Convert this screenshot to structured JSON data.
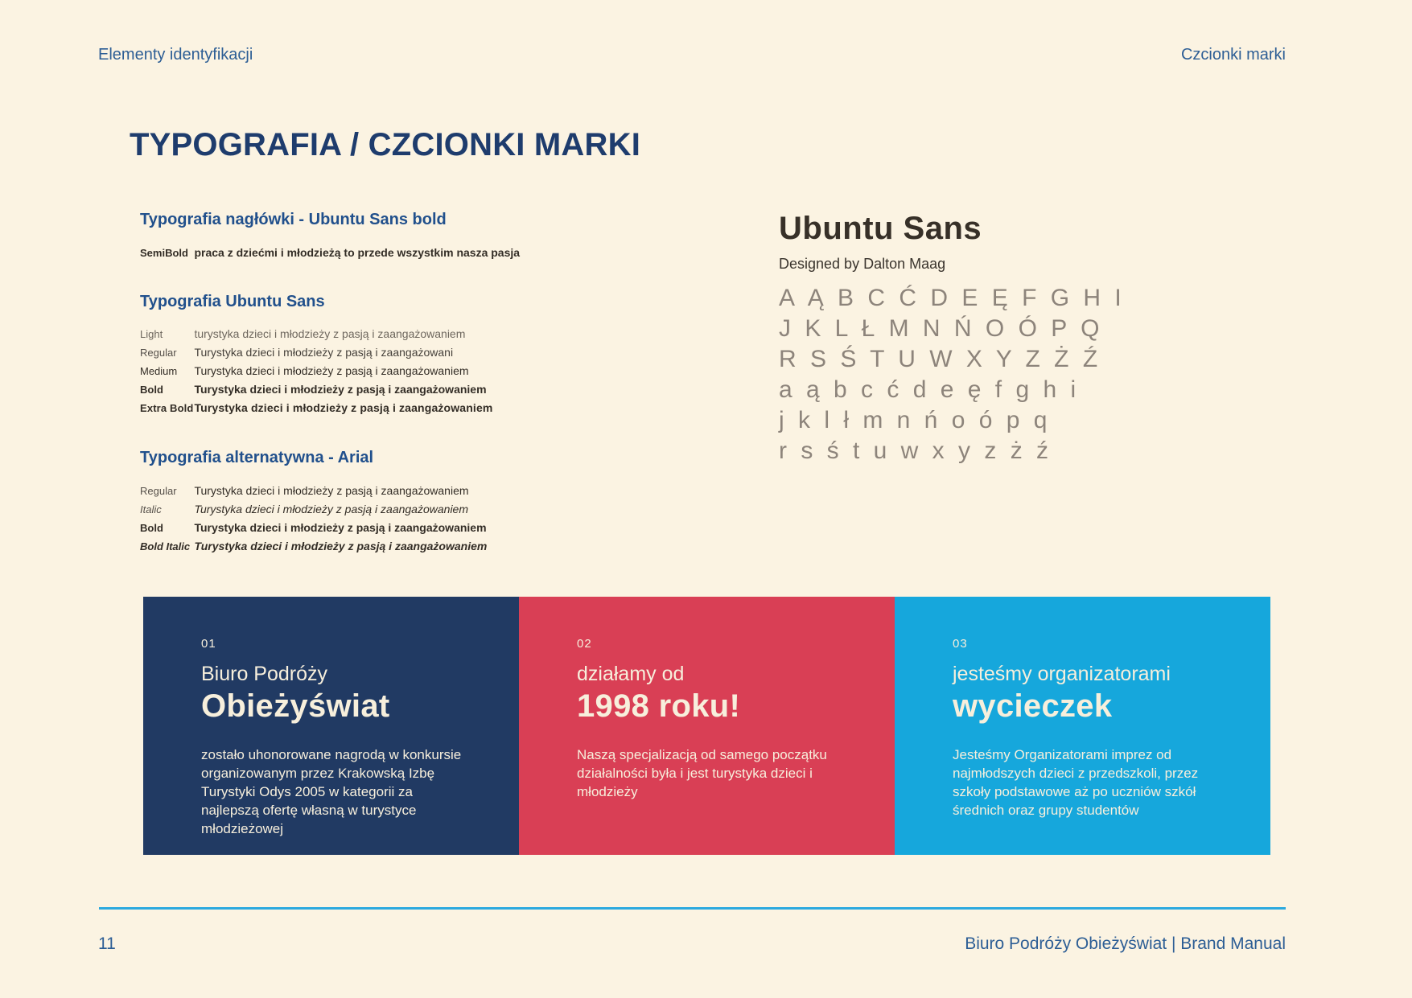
{
  "page": {
    "header_left": "Elementy identyfikacji",
    "header_right": "Czcionki marki",
    "title": "TYPOGRAFIA / CZCIONKI MARKI",
    "footer_page_number": "11",
    "footer_right": "Biuro Podróży Obieżyświat | Brand Manual"
  },
  "typography": {
    "heading_section": {
      "title": "Typografia nagłówki - Ubuntu Sans bold",
      "rows": [
        {
          "label": "SemiBold",
          "text": "praca z dziećmi i młodzieżą to przede wszystkim nasza pasja"
        }
      ]
    },
    "ubuntu_section": {
      "title": "Typografia Ubuntu Sans",
      "rows": [
        {
          "label": "Light",
          "text": "turystyka dzieci i młodzieży z pasją i zaangażowaniem"
        },
        {
          "label": "Regular",
          "text": "Turystyka dzieci i młodzieży z pasją i zaangażowani"
        },
        {
          "label": "Medium",
          "text": "Turystyka dzieci i młodzieży z pasją i zaangażowaniem"
        },
        {
          "label": "Bold",
          "text": "Turystyka dzieci i młodzieży z pasją i zaangażowaniem"
        },
        {
          "label": "Extra Bold",
          "text": "Turystyka dzieci i młodzieży z pasją i zaangażowaniem"
        }
      ]
    },
    "arial_section": {
      "title": "Typografia alternatywna - Arial",
      "rows": [
        {
          "label": "Regular",
          "text": "Turystyka dzieci i młodzieży z pasją i zaangażowaniem"
        },
        {
          "label": "Italic",
          "text": "Turystyka dzieci i młodzieży z pasją i zaangażowaniem"
        },
        {
          "label": "Bold",
          "text": "Turystyka dzieci i młodzieży z pasją i zaangażowaniem"
        },
        {
          "label": "Bold Italic",
          "text": "Turystyka dzieci i młodzieży z pasją i zaangażowaniem"
        }
      ]
    }
  },
  "specimen": {
    "font_name": "Ubuntu Sans",
    "designer": "Designed by Dalton Maag",
    "rows": [
      "A Ą B C Ć D E Ę F G H I",
      "J K L Ł M N Ń O Ó P Q",
      "R S Ś T U W X Y Z Ż Ź",
      "a ą b c ć d e ę f g h i",
      "j k l ł m n ń o ó p q",
      "r s ś t u w x y z ż ź"
    ]
  },
  "cards": [
    {
      "number": "01",
      "kicker": "Biuro Podróży",
      "headline": "Obieżyświat",
      "body": "zostało uhonorowane nagrodą w konkursie organizowanym przez Krakowską Izbę Turystyki Odys 2005 w kategorii za najlepszą ofertę własną w turystyce młodzieżowej",
      "bg": "#213A63"
    },
    {
      "number": "02",
      "kicker": "działamy od",
      "headline": "1998 roku!",
      "body": "Naszą specjalizacją od samego początku działalności była i jest turystyka dzieci i młodzieży",
      "bg": "#D93F55"
    },
    {
      "number": "03",
      "kicker": "jesteśmy organizatorami",
      "headline": "wycieczek",
      "body": "Jesteśmy Organizatorami imprez od najmłodszych dzieci z przedszkoli, przez szkoły podstawowe aż po uczniów szkół średnich oraz grupy studentów",
      "bg": "#16A7DC"
    }
  ],
  "colors": {
    "background": "#FBF3E2",
    "header_blue": "#2D5E95",
    "title_navy": "#1E3C6D",
    "section_blue": "#21508C",
    "text_dark": "#332D26",
    "specimen_gray": "#8D847B",
    "card_text": "#F7EFDC",
    "footer_line_cyan": "#2BA9DF",
    "card_navy": "#213A63",
    "card_red": "#D93F55",
    "card_cyan": "#16A7DC"
  }
}
